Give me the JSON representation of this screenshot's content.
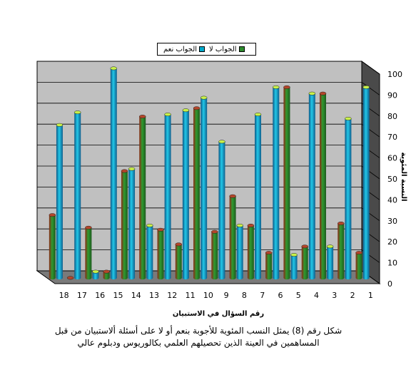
{
  "chart_data": {
    "type": "bar",
    "categories": [
      "1",
      "2",
      "3",
      "4",
      "5",
      "6",
      "7",
      "8",
      "9",
      "10",
      "11",
      "12",
      "13",
      "14",
      "15",
      "16",
      "17",
      "18"
    ],
    "series": [
      {
        "name": "الجواب نعم",
        "color": "#00aacc",
        "values": [
          91,
          76,
          15,
          88,
          11,
          91,
          78,
          25,
          65,
          86,
          80,
          78,
          25,
          52,
          100,
          3,
          79,
          73
        ]
      },
      {
        "name": "الجواب لا",
        "color": "#2e8b2e",
        "values": [
          12,
          26,
          88,
          15,
          91,
          12,
          25,
          39,
          22,
          81,
          16,
          23,
          77,
          51,
          3,
          24,
          0,
          30
        ]
      }
    ],
    "ylim": [
      0,
      100
    ],
    "yticks": [
      0,
      10,
      20,
      30,
      40,
      50,
      60,
      70,
      80,
      90,
      100
    ],
    "ylabel": "النسبة المئوية",
    "xlabel": "رقم السؤال في الاستبيان",
    "grid": true,
    "legend_position": "top"
  },
  "caption": {
    "line1": "شكل رقم (8)  يمثل النسب المئوية للأجوبة بنعم أو لا على أسئلة ألاستبيان من قبل",
    "line2": "المساهمين في العينة الذين تحصيلهم العلمي بكالوريوس ودبلوم عالي"
  }
}
